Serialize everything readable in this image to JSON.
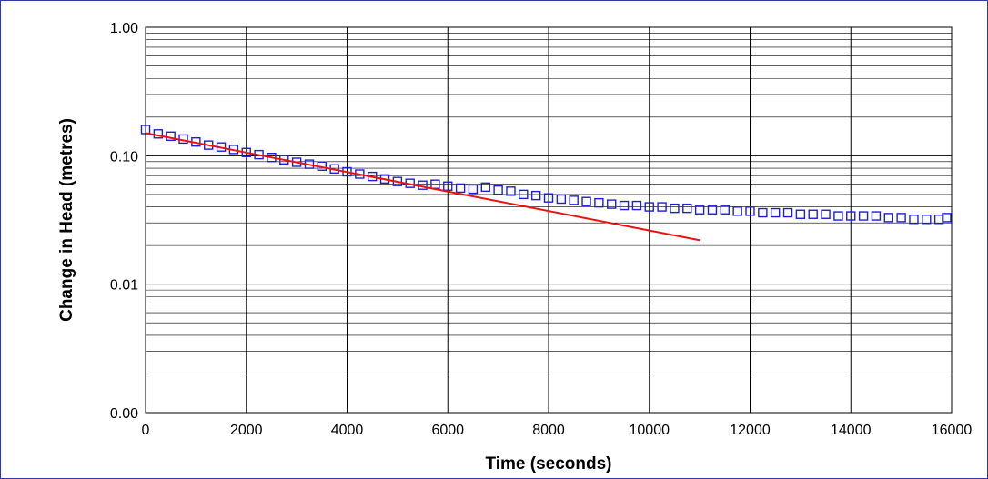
{
  "chart_data": {
    "type": "scatter",
    "title": "",
    "xlabel": "Time (seconds)",
    "ylabel": "Change in Head (metres)",
    "x_scale": "linear",
    "y_scale": "log",
    "xlim": [
      0,
      16000
    ],
    "ylim": [
      0.001,
      1
    ],
    "x_ticks": [
      0,
      2000,
      4000,
      6000,
      8000,
      10000,
      12000,
      14000,
      16000
    ],
    "x_tick_labels": [
      "0",
      "2000",
      "4000",
      "6000",
      "8000",
      "10000",
      "12000",
      "14000",
      "16000"
    ],
    "y_ticks": [
      0.001,
      0.01,
      0.1,
      1
    ],
    "y_tick_labels": [
      "0.00",
      "0.01",
      "0.10",
      "1.00"
    ],
    "grid": true,
    "legend": "none",
    "series": [
      {
        "kind": "markers",
        "marker": "open-square",
        "color": "#1f1fd6",
        "points": [
          [
            0,
            0.16
          ],
          [
            250,
            0.148
          ],
          [
            500,
            0.142
          ],
          [
            750,
            0.135
          ],
          [
            1000,
            0.128
          ],
          [
            1250,
            0.121
          ],
          [
            1500,
            0.117
          ],
          [
            1750,
            0.112
          ],
          [
            2000,
            0.106
          ],
          [
            2250,
            0.102
          ],
          [
            2500,
            0.097
          ],
          [
            2750,
            0.093
          ],
          [
            3000,
            0.089
          ],
          [
            3250,
            0.086
          ],
          [
            3500,
            0.083
          ],
          [
            3750,
            0.079
          ],
          [
            4000,
            0.075
          ],
          [
            4250,
            0.072
          ],
          [
            4500,
            0.069
          ],
          [
            4750,
            0.066
          ],
          [
            5000,
            0.063
          ],
          [
            5250,
            0.061
          ],
          [
            5500,
            0.059
          ],
          [
            5750,
            0.06
          ],
          [
            6000,
            0.058
          ],
          [
            6250,
            0.056
          ],
          [
            6500,
            0.055
          ],
          [
            6750,
            0.057
          ],
          [
            7000,
            0.054
          ],
          [
            7250,
            0.053
          ],
          [
            7500,
            0.05
          ],
          [
            7750,
            0.049
          ],
          [
            8000,
            0.047
          ],
          [
            8250,
            0.046
          ],
          [
            8500,
            0.045
          ],
          [
            8750,
            0.044
          ],
          [
            9000,
            0.043
          ],
          [
            9250,
            0.042
          ],
          [
            9500,
            0.041
          ],
          [
            9750,
            0.041
          ],
          [
            10000,
            0.04
          ],
          [
            10250,
            0.04
          ],
          [
            10500,
            0.039
          ],
          [
            10750,
            0.039
          ],
          [
            11000,
            0.038
          ],
          [
            11250,
            0.038
          ],
          [
            11500,
            0.038
          ],
          [
            11750,
            0.037
          ],
          [
            12000,
            0.037
          ],
          [
            12250,
            0.036
          ],
          [
            12500,
            0.036
          ],
          [
            12750,
            0.036
          ],
          [
            13000,
            0.035
          ],
          [
            13250,
            0.035
          ],
          [
            13500,
            0.035
          ],
          [
            13750,
            0.034
          ],
          [
            14000,
            0.034
          ],
          [
            14250,
            0.034
          ],
          [
            14500,
            0.034
          ],
          [
            14750,
            0.033
          ],
          [
            15000,
            0.033
          ],
          [
            15250,
            0.032
          ],
          [
            15500,
            0.032
          ],
          [
            15750,
            0.032
          ],
          [
            15900,
            0.033
          ]
        ]
      },
      {
        "kind": "line",
        "color": "#ee1111",
        "points": [
          [
            0,
            0.15
          ],
          [
            11000,
            0.022
          ]
        ]
      }
    ]
  }
}
